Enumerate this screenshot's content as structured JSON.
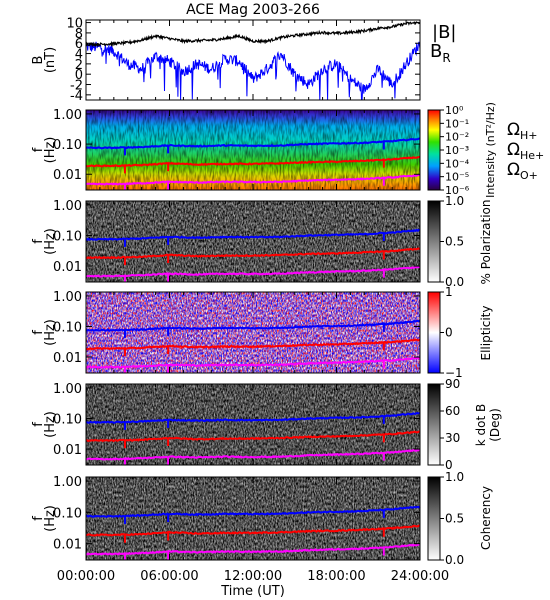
{
  "chart_data": {
    "title": "ACE Mag 2003-266",
    "type": "line",
    "time_axis": {
      "label": "Time (UT)",
      "ticks": [
        "00:00:00",
        "06:00:00",
        "12:00:00",
        "18:00:00",
        "24:00:00"
      ],
      "range_hours": [
        0,
        24
      ]
    },
    "panels": [
      {
        "id": "field",
        "type": "line",
        "ylabel": [
          "B",
          "(nT)"
        ],
        "ylim": [
          -5,
          10.5
        ],
        "yticks": [
          "10",
          "8",
          "6",
          "4",
          "2",
          "0",
          "-2",
          "-4"
        ],
        "series": [
          {
            "name": "|B|",
            "color": "#000000",
            "t": [
              0,
              1,
              2,
              3,
              4,
              5,
              6,
              7,
              8,
              9,
              10,
              11,
              12,
              13,
              14,
              15,
              16,
              17,
              18,
              19,
              20,
              21,
              22,
              23,
              24
            ],
            "values": [
              5.8,
              5.8,
              5.9,
              6.1,
              6.6,
              7.4,
              6.9,
              6.4,
              6.5,
              6.6,
              6.9,
              7.4,
              6.4,
              6.4,
              7.1,
              7.5,
              7.8,
              8.1,
              7.9,
              8.1,
              8.4,
              8.9,
              9.2,
              9.8,
              10.0
            ]
          },
          {
            "name": "B",
            "name_subscript": "R",
            "color": "#0000ff",
            "t": [
              0,
              1,
              2,
              3,
              4,
              5,
              6,
              7,
              8,
              9,
              10,
              11,
              12,
              13,
              14,
              15,
              16,
              17,
              18,
              19,
              20,
              21,
              22,
              23,
              24
            ],
            "values": [
              5.3,
              5.2,
              4.5,
              2.0,
              1.0,
              3.5,
              2.5,
              0.5,
              2.0,
              1.0,
              3.0,
              2.5,
              -1.0,
              1.0,
              4.0,
              0.0,
              -2.0,
              1.0,
              2.0,
              -1.0,
              -3.0,
              1.0,
              -2.0,
              2.0,
              6.0
            ]
          }
        ]
      },
      {
        "id": "intensity",
        "type": "heatmap",
        "colormap": "rainbow",
        "ylabel": [
          "f",
          "(Hz)"
        ],
        "yticks": [
          "1.00",
          "0.10",
          "0.01"
        ],
        "colorbar": {
          "label": "Intensity (nT²/Hz)",
          "ticks": [
            "10⁰",
            "10⁻¹",
            "10⁻²",
            "10⁻³",
            "10⁻⁴",
            "10⁻⁵",
            "10⁻⁶"
          ]
        }
      },
      {
        "id": "polarization",
        "type": "heatmap",
        "colormap": "gray",
        "ylabel": [
          "f",
          "(Hz)"
        ],
        "yticks": [
          "1.00",
          "0.10",
          "0.01"
        ],
        "colorbar": {
          "label": "% Polarization",
          "ticks": [
            "1.0",
            "0.5",
            "0.0"
          ]
        }
      },
      {
        "id": "ellipticity",
        "type": "heatmap",
        "colormap": "bluewhitered",
        "ylabel": [
          "f",
          "(Hz)"
        ],
        "yticks": [
          "1.00",
          "0.10",
          "0.01"
        ],
        "colorbar": {
          "label": "Ellipticity",
          "ticks": [
            "1",
            "0",
            "−1"
          ]
        }
      },
      {
        "id": "kdotb",
        "type": "heatmap",
        "colormap": "gray",
        "ylabel": [
          "f",
          "(Hz)"
        ],
        "yticks": [
          "1.00",
          "0.10",
          "0.01"
        ],
        "colorbar": {
          "label": "k dot B (Deg)",
          "label_lines": [
            "k dot B",
            "(Deg)"
          ],
          "ticks": [
            "90",
            "60",
            "30",
            "0"
          ]
        }
      },
      {
        "id": "coherency",
        "type": "heatmap",
        "colormap": "gray",
        "ylabel": [
          "f",
          "(Hz)"
        ],
        "yticks": [
          "1.00",
          "0.10",
          "0.01"
        ],
        "colorbar": {
          "label": "Coherency",
          "ticks": [
            "1.0",
            "0.5",
            "0.0"
          ]
        }
      }
    ],
    "cyclotron_frequencies": [
      {
        "name": "Ω",
        "name_subscript": "H+",
        "color": "#0000ff",
        "t": [
          0,
          2,
          4,
          6,
          8,
          10,
          12,
          14,
          16,
          18,
          20,
          22,
          24
        ],
        "f_hz": [
          0.075,
          0.075,
          0.08,
          0.09,
          0.085,
          0.09,
          0.088,
          0.09,
          0.1,
          0.105,
          0.11,
          0.125,
          0.15
        ]
      },
      {
        "name": "Ω",
        "name_subscript": "He+",
        "color": "#ff0000",
        "t": [
          0,
          2,
          4,
          6,
          8,
          10,
          12,
          14,
          16,
          18,
          20,
          22,
          24
        ],
        "f_hz": [
          0.019,
          0.019,
          0.02,
          0.023,
          0.021,
          0.022,
          0.022,
          0.023,
          0.025,
          0.026,
          0.028,
          0.031,
          0.037
        ]
      },
      {
        "name": "Ω",
        "name_subscript": "O+",
        "color": "#ff00ff",
        "t": [
          0,
          2,
          4,
          6,
          8,
          10,
          12,
          14,
          16,
          18,
          20,
          22,
          24
        ],
        "f_hz": [
          0.0047,
          0.0047,
          0.005,
          0.0056,
          0.0053,
          0.0056,
          0.0055,
          0.0056,
          0.0062,
          0.0066,
          0.007,
          0.0078,
          0.0093
        ]
      }
    ]
  }
}
